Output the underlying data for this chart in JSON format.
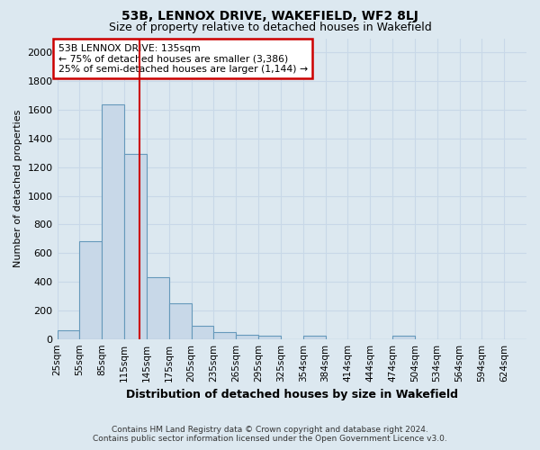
{
  "title": "53B, LENNOX DRIVE, WAKEFIELD, WF2 8LJ",
  "subtitle": "Size of property relative to detached houses in Wakefield",
  "xlabel": "Distribution of detached houses by size in Wakefield",
  "ylabel": "Number of detached properties",
  "footer_line1": "Contains HM Land Registry data © Crown copyright and database right 2024.",
  "footer_line2": "Contains public sector information licensed under the Open Government Licence v3.0.",
  "bin_labels": [
    "25sqm",
    "55sqm",
    "85sqm",
    "115sqm",
    "145sqm",
    "175sqm",
    "205sqm",
    "235sqm",
    "265sqm",
    "295sqm",
    "325sqm",
    "354sqm",
    "384sqm",
    "414sqm",
    "444sqm",
    "474sqm",
    "504sqm",
    "534sqm",
    "564sqm",
    "594sqm",
    "624sqm"
  ],
  "bar_values": [
    60,
    680,
    1640,
    1290,
    430,
    250,
    90,
    50,
    30,
    20,
    0,
    25,
    0,
    0,
    0,
    25,
    0,
    0,
    0,
    0,
    0
  ],
  "bar_color": "#c8d8e8",
  "bar_edge_color": "#6699bb",
  "bar_edge_width": 0.8,
  "property_line_x": 3.67,
  "property_line_color": "#cc0000",
  "ylim": [
    0,
    2100
  ],
  "yticks": [
    0,
    200,
    400,
    600,
    800,
    1000,
    1200,
    1400,
    1600,
    1800,
    2000
  ],
  "annotation_text": "53B LENNOX DRIVE: 135sqm\n← 75% of detached houses are smaller (3,386)\n25% of semi-detached houses are larger (1,144) →",
  "annotation_box_color": "#ffffff",
  "annotation_box_edge_color": "#cc0000",
  "grid_color": "#c8d8e8",
  "background_color": "#dce8f0",
  "axes_background_color": "#dce8f0",
  "title_fontsize": 10,
  "subtitle_fontsize": 9
}
